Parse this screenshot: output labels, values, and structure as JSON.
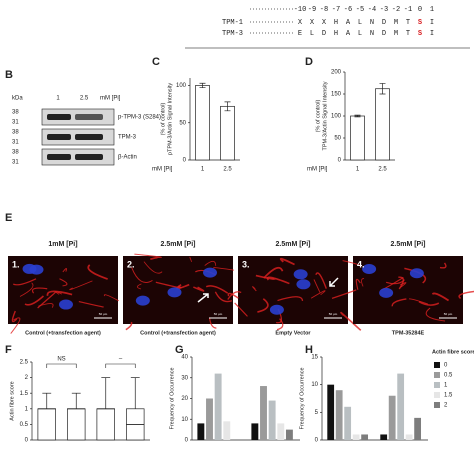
{
  "alignment": {
    "positions": [
      -10,
      -9,
      -8,
      -7,
      -6,
      -5,
      -4,
      -3,
      -2,
      -1,
      0,
      1
    ],
    "rows": [
      {
        "name": "TPM-1",
        "residues": [
          "X",
          "X",
          "X",
          "H",
          "A",
          "L",
          "N",
          "D",
          "M",
          "T",
          "S",
          "I"
        ]
      },
      {
        "name": "TPM-3",
        "residues": [
          "E",
          "L",
          "D",
          "H",
          "A",
          "L",
          "N",
          "D",
          "M",
          "T",
          "S",
          "I"
        ]
      }
    ],
    "highlight": {
      "position": 0,
      "color": "#d7191c"
    }
  },
  "blot": {
    "panel": "B",
    "kda_label": "kDa",
    "kda": [
      "38",
      "31",
      "38",
      "31",
      "38",
      "31"
    ],
    "lanes": [
      "1",
      "2.5"
    ],
    "unit": "mM [Pi]",
    "bands": [
      "p-TPM-3 (S284)",
      "TPM-3",
      "β-Actin"
    ]
  },
  "images": {
    "panel": "E",
    "items": [
      {
        "title": "1mM [Pi]",
        "number": "1.",
        "caption": "Control (+transfection agent)",
        "scale": "50 µm"
      },
      {
        "title": "2.5mM [Pi]",
        "number": "2.",
        "caption": "Control (+transfection agent)",
        "scale": "50 µm"
      },
      {
        "title": "2.5mM [Pi]",
        "number": "3.",
        "caption": "Empty Vector",
        "scale": "50 µm"
      },
      {
        "title": "2.5mM [Pi]",
        "number": "4.",
        "caption": "TPM-35284E",
        "scale": "50 µm"
      }
    ]
  },
  "chart_data": [
    {
      "type": "bar",
      "panel": "C",
      "ylabel": [
        "pTPM-3/Actin Signal Intensity",
        "(% of control)"
      ],
      "xlabel": "mM [Pi]",
      "categories": [
        "1",
        "2.5"
      ],
      "values": [
        100,
        72
      ],
      "errors": [
        3,
        6
      ],
      "color": "#ffffff",
      "ylim": [
        0,
        110
      ],
      "yticks": [
        0,
        50,
        100
      ]
    },
    {
      "type": "bar",
      "panel": "D",
      "ylabel": [
        "TPM-3/Actin Signal Intensity",
        "(% of control)"
      ],
      "xlabel": "mM [Pi]",
      "categories": [
        "1",
        "2.5"
      ],
      "values": [
        100,
        162
      ],
      "errors": [
        2,
        12
      ],
      "color": "#ffffff",
      "ylim": [
        0,
        200
      ],
      "yticks": [
        0,
        50,
        100,
        150,
        200
      ]
    },
    {
      "type": "box",
      "panel": "F",
      "ylabel": "Actin fibre score",
      "ylim": [
        0,
        2.5
      ],
      "yticks": [
        0,
        0.5,
        1,
        1.5,
        2,
        2.5
      ],
      "boxes": [
        {
          "min": 0,
          "q1": 0,
          "median": 1,
          "q3": 1,
          "max": 1.5
        },
        {
          "min": 0,
          "q1": 0,
          "median": 1,
          "q3": 1,
          "max": 1.5
        },
        {
          "min": 0,
          "q1": 0,
          "median": 1,
          "q3": 1,
          "max": 2
        },
        {
          "min": 0,
          "q1": 0,
          "median": 0.5,
          "q3": 1,
          "max": 2
        }
      ],
      "annotations": [
        "NS",
        "–"
      ]
    },
    {
      "type": "grouped_bar",
      "panel": "G",
      "ylabel": "Frequency of Occurrence",
      "ylim": [
        0,
        40
      ],
      "yticks": [
        0,
        10,
        20,
        30,
        40
      ],
      "series": [
        {
          "name": "0",
          "color": "#111111",
          "values": [
            8,
            8
          ]
        },
        {
          "name": "0.5",
          "color": "#9a9a9a",
          "values": [
            20,
            26
          ]
        },
        {
          "name": "1",
          "color": "#b9bfc2",
          "values": [
            32,
            19
          ]
        },
        {
          "name": "1.5",
          "color": "#e6e6e6",
          "values": [
            9,
            8
          ]
        },
        {
          "name": "2",
          "color": "#7d7d7d",
          "values": [
            0,
            5
          ]
        }
      ]
    },
    {
      "type": "grouped_bar",
      "panel": "H",
      "ylabel": "Frequency of Occurrence",
      "ylim": [
        0,
        15
      ],
      "yticks": [
        0,
        5,
        10,
        15
      ],
      "legend": true,
      "legend_title": "Actin fibre score",
      "series": [
        {
          "name": "0",
          "color": "#111111",
          "values": [
            10,
            1
          ]
        },
        {
          "name": "0.5",
          "color": "#9a9a9a",
          "values": [
            9,
            8
          ]
        },
        {
          "name": "1",
          "color": "#b9bfc2",
          "values": [
            6,
            12
          ]
        },
        {
          "name": "1.5",
          "color": "#e6e6e6",
          "values": [
            1,
            1
          ]
        },
        {
          "name": "2",
          "color": "#7d7d7d",
          "values": [
            1,
            4
          ]
        }
      ]
    }
  ]
}
